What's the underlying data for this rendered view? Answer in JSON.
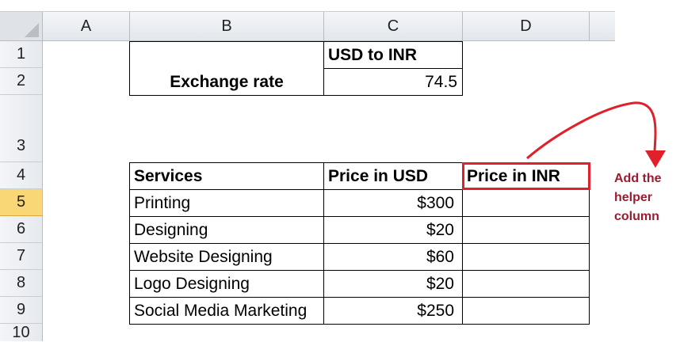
{
  "columns": [
    "A",
    "B",
    "C",
    "D"
  ],
  "rows": [
    "1",
    "2",
    "3",
    "4",
    "5",
    "6",
    "7",
    "8",
    "9",
    "10"
  ],
  "active_row": "5",
  "exchange": {
    "header": "USD to INR",
    "label": "Exchange rate",
    "value": "74.5"
  },
  "table": {
    "headers": [
      "Services",
      "Price in USD",
      "Price in INR"
    ],
    "rows": [
      {
        "service": "Printing",
        "usd": "$300",
        "inr": ""
      },
      {
        "service": "Designing",
        "usd": "$20",
        "inr": ""
      },
      {
        "service": "Website Designing",
        "usd": "$60",
        "inr": ""
      },
      {
        "service": "Logo Designing",
        "usd": "$20",
        "inr": ""
      },
      {
        "service": "Social Media Marketing",
        "usd": "$250",
        "inr": ""
      }
    ]
  },
  "annotation": {
    "line1": "Add the",
    "line2": "helper",
    "line3": "column",
    "color": "#9b1b30",
    "highlight_color": "#e0202a"
  },
  "colors": {
    "header_bg": "#e3e7ec",
    "active_row_bg": "#f9d676"
  }
}
